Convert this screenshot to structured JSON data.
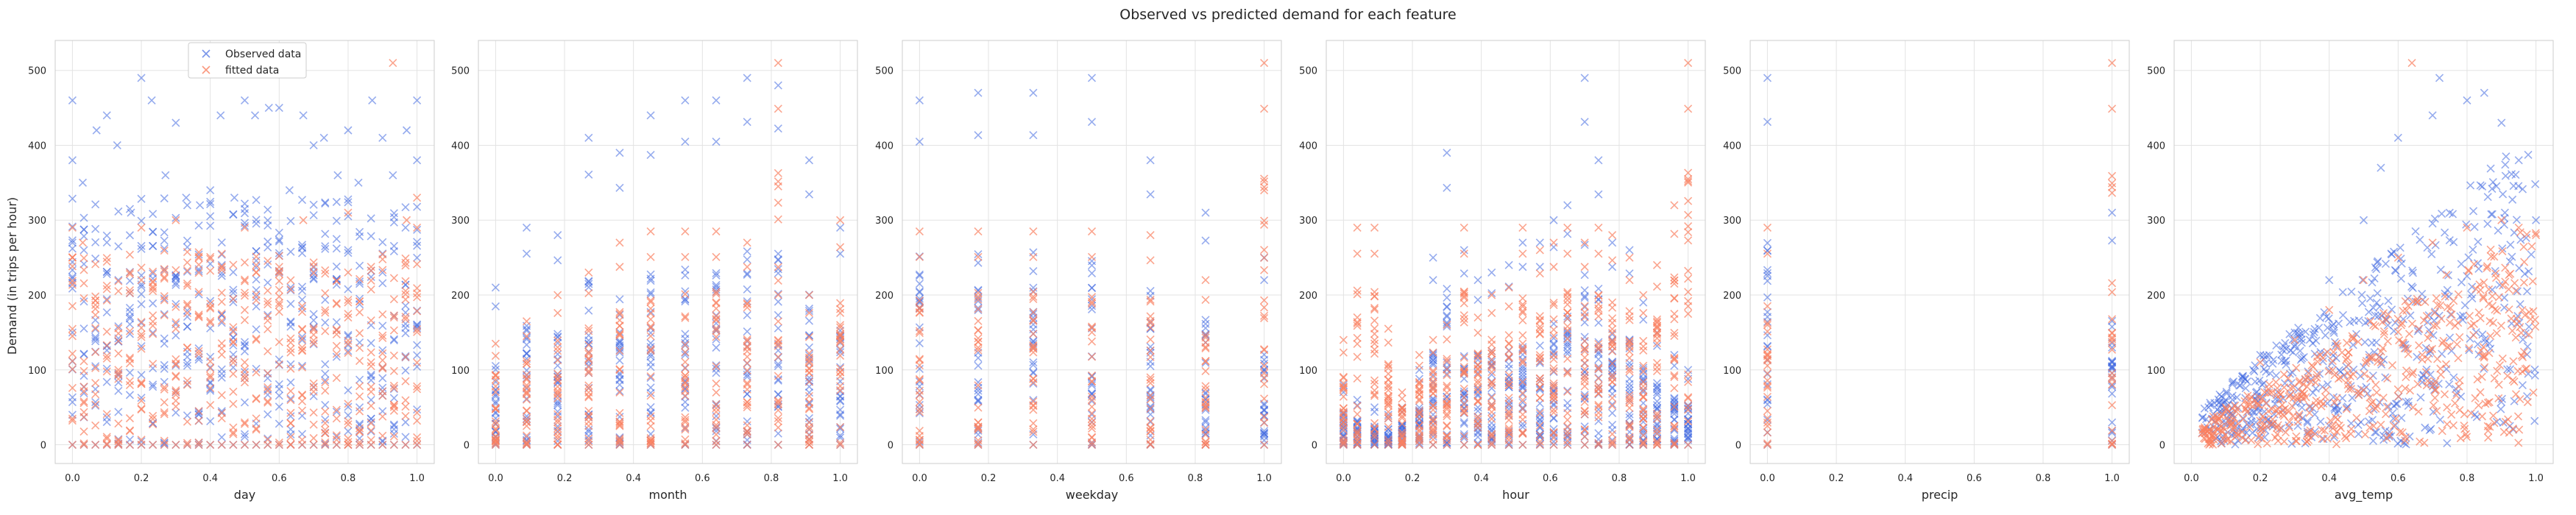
{
  "figure_title": "Observed vs predicted demand for each feature",
  "ylabel": "Demand (in trips per hour)",
  "colors": {
    "observed": "#4169e1",
    "fitted": "#fa8060",
    "grid": "#e3e3e3",
    "frame": "#cccccc"
  },
  "legend": {
    "placement": "top-center of first panel",
    "observed_label": "Observed data",
    "fitted_label": "fitted data"
  },
  "chart_data": [
    {
      "type": "scatter",
      "xlabel": "day",
      "marker": "x",
      "grid": true,
      "xlim": [
        -0.05,
        1.05
      ],
      "ylim": [
        -25,
        540
      ],
      "xticks": [
        "0.0",
        "0.2",
        "0.4",
        "0.6",
        "0.8",
        "1.0"
      ],
      "yticks": [
        "0",
        "100",
        "200",
        "300",
        "400",
        "500"
      ],
      "x_pattern": "31 day columns 0.0–1.0",
      "series": [
        {
          "name": "Observed data",
          "role": "observed",
          "points_approx": [
            [
              0.0,
              460
            ],
            [
              0.0,
              380
            ],
            [
              0.0,
              270
            ],
            [
              0.0,
              150
            ],
            [
              0.0,
              40
            ],
            [
              0.03,
              350
            ],
            [
              0.07,
              420
            ],
            [
              0.1,
              440
            ],
            [
              0.13,
              400
            ],
            [
              0.17,
              310
            ],
            [
              0.2,
              490
            ],
            [
              0.23,
              460
            ],
            [
              0.27,
              360
            ],
            [
              0.3,
              430
            ],
            [
              0.33,
              330
            ],
            [
              0.37,
              320
            ],
            [
              0.4,
              340
            ],
            [
              0.43,
              440
            ],
            [
              0.47,
              330
            ],
            [
              0.5,
              460
            ],
            [
              0.53,
              440
            ],
            [
              0.57,
              450
            ],
            [
              0.6,
              450
            ],
            [
              0.63,
              340
            ],
            [
              0.67,
              440
            ],
            [
              0.7,
              400
            ],
            [
              0.73,
              410
            ],
            [
              0.77,
              360
            ],
            [
              0.8,
              420
            ],
            [
              0.83,
              350
            ],
            [
              0.87,
              460
            ],
            [
              0.9,
              410
            ],
            [
              0.93,
              360
            ],
            [
              0.97,
              420
            ],
            [
              1.0,
              460
            ],
            [
              1.0,
              380
            ]
          ]
        },
        {
          "name": "fitted data",
          "role": "fitted",
          "points_approx": [
            [
              0.0,
              290
            ],
            [
              0.0,
              250
            ],
            [
              0.03,
              270
            ],
            [
              0.2,
              290
            ],
            [
              0.3,
              300
            ],
            [
              0.5,
              290
            ],
            [
              0.67,
              300
            ],
            [
              0.8,
              310
            ],
            [
              0.93,
              510
            ],
            [
              0.97,
              300
            ],
            [
              1.0,
              330
            ],
            [
              1.0,
              290
            ]
          ]
        }
      ]
    },
    {
      "type": "scatter",
      "xlabel": "month",
      "marker": "x",
      "grid": true,
      "xlim": [
        -0.05,
        1.05
      ],
      "ylim": [
        -25,
        540
      ],
      "xticks": [
        "0.0",
        "0.2",
        "0.4",
        "0.6",
        "0.8",
        "1.0"
      ],
      "yticks": [
        "0",
        "100",
        "200",
        "300",
        "400",
        "500"
      ],
      "x_pattern": "12 month columns 0.0–1.0",
      "series": [
        {
          "name": "Observed data",
          "role": "observed",
          "columns": [
            [
              0.0,
              210
            ],
            [
              0.09,
              290
            ],
            [
              0.18,
              280
            ],
            [
              0.27,
              410
            ],
            [
              0.36,
              390
            ],
            [
              0.45,
              440
            ],
            [
              0.55,
              460
            ],
            [
              0.64,
              460
            ],
            [
              0.73,
              490
            ],
            [
              0.82,
              480
            ],
            [
              0.91,
              380
            ],
            [
              1.0,
              290
            ]
          ]
        },
        {
          "name": "fitted data",
          "role": "fitted",
          "columns": [
            [
              0.0,
              135
            ],
            [
              0.09,
              165
            ],
            [
              0.18,
              200
            ],
            [
              0.27,
              230
            ],
            [
              0.36,
              270
            ],
            [
              0.45,
              285
            ],
            [
              0.55,
              285
            ],
            [
              0.64,
              285
            ],
            [
              0.73,
              270
            ],
            [
              0.82,
              510
            ],
            [
              0.91,
              200
            ],
            [
              1.0,
              300
            ]
          ]
        }
      ]
    },
    {
      "type": "scatter",
      "xlabel": "weekday",
      "marker": "x",
      "grid": true,
      "xlim": [
        -0.05,
        1.05
      ],
      "ylim": [
        -25,
        540
      ],
      "xticks": [
        "0.0",
        "0.2",
        "0.4",
        "0.6",
        "0.8",
        "1.0"
      ],
      "yticks": [
        "0",
        "100",
        "200",
        "300",
        "400",
        "500"
      ],
      "x_pattern": "7 weekday columns 0.0–1.0",
      "series": [
        {
          "name": "Observed data",
          "role": "observed",
          "columns": [
            [
              0.0,
              460
            ],
            [
              0.17,
              470
            ],
            [
              0.33,
              470
            ],
            [
              0.5,
              490
            ],
            [
              0.67,
              380
            ],
            [
              0.83,
              310
            ],
            [
              1.0,
              250
            ]
          ]
        },
        {
          "name": "fitted data",
          "role": "fitted",
          "columns": [
            [
              0.0,
              285
            ],
            [
              0.17,
              285
            ],
            [
              0.33,
              285
            ],
            [
              0.5,
              285
            ],
            [
              0.67,
              280
            ],
            [
              0.83,
              220
            ],
            [
              1.0,
              510
            ]
          ]
        }
      ]
    },
    {
      "type": "scatter",
      "xlabel": "hour",
      "marker": "x",
      "grid": true,
      "xlim": [
        -0.05,
        1.05
      ],
      "ylim": [
        -25,
        540
      ],
      "xticks": [
        "0.0",
        "0.2",
        "0.4",
        "0.6",
        "0.8",
        "1.0"
      ],
      "yticks": [
        "0",
        "100",
        "200",
        "300",
        "400",
        "500"
      ],
      "x_pattern": "24 hour columns 0.0–1.0",
      "series": [
        {
          "name": "Observed data",
          "role": "observed",
          "columns": [
            [
              0.0,
              80
            ],
            [
              0.04,
              60
            ],
            [
              0.09,
              50
            ],
            [
              0.13,
              40
            ],
            [
              0.17,
              50
            ],
            [
              0.22,
              100
            ],
            [
              0.26,
              250
            ],
            [
              0.3,
              390
            ],
            [
              0.35,
              260
            ],
            [
              0.39,
              220
            ],
            [
              0.43,
              230
            ],
            [
              0.48,
              240
            ],
            [
              0.52,
              270
            ],
            [
              0.57,
              270
            ],
            [
              0.61,
              300
            ],
            [
              0.65,
              320
            ],
            [
              0.7,
              490
            ],
            [
              0.74,
              380
            ],
            [
              0.78,
              270
            ],
            [
              0.83,
              260
            ],
            [
              0.87,
              190
            ],
            [
              0.91,
              150
            ],
            [
              0.96,
              120
            ],
            [
              1.0,
              100
            ]
          ]
        },
        {
          "name": "fitted data",
          "role": "fitted",
          "columns": [
            [
              0.0,
              140
            ],
            [
              0.04,
              290
            ],
            [
              0.09,
              290
            ],
            [
              0.13,
              155
            ],
            [
              0.17,
              70
            ],
            [
              0.22,
              120
            ],
            [
              0.26,
              140
            ],
            [
              0.3,
              160
            ],
            [
              0.35,
              290
            ],
            [
              0.39,
              170
            ],
            [
              0.43,
              200
            ],
            [
              0.48,
              210
            ],
            [
              0.52,
              290
            ],
            [
              0.57,
              260
            ],
            [
              0.61,
              270
            ],
            [
              0.65,
              290
            ],
            [
              0.7,
              270
            ],
            [
              0.74,
              290
            ],
            [
              0.78,
              280
            ],
            [
              0.83,
              250
            ],
            [
              0.87,
              200
            ],
            [
              0.91,
              240
            ],
            [
              0.96,
              320
            ],
            [
              1.0,
              510
            ]
          ]
        }
      ]
    },
    {
      "type": "scatter",
      "xlabel": "precip",
      "marker": "x",
      "grid": true,
      "xlim": [
        -0.05,
        1.05
      ],
      "ylim": [
        -25,
        540
      ],
      "xticks": [
        "0.0",
        "0.2",
        "0.4",
        "0.6",
        "0.8",
        "1.0"
      ],
      "yticks": [
        "0",
        "100",
        "200",
        "300",
        "400",
        "500"
      ],
      "x_pattern": "2 columns at 0.0 and 1.0",
      "series": [
        {
          "name": "Observed data",
          "role": "observed",
          "columns": [
            [
              0.0,
              490
            ],
            [
              1.0,
              310
            ]
          ]
        },
        {
          "name": "fitted data",
          "role": "fitted",
          "columns": [
            [
              0.0,
              290
            ],
            [
              1.0,
              510
            ]
          ]
        }
      ]
    },
    {
      "type": "scatter",
      "xlabel": "avg_temp",
      "marker": "x",
      "grid": true,
      "xlim": [
        -0.05,
        1.05
      ],
      "ylim": [
        -25,
        540
      ],
      "xticks": [
        "0.0",
        "0.2",
        "0.4",
        "0.6",
        "0.8",
        "1.0"
      ],
      "yticks": [
        "0",
        "100",
        "200",
        "300",
        "400",
        "500"
      ],
      "x_pattern": "continuous cloud, density increasing toward 0.7–0.9",
      "series": [
        {
          "name": "Observed data",
          "role": "observed",
          "points_approx": [
            [
              0.05,
              50
            ],
            [
              0.1,
              60
            ],
            [
              0.2,
              120
            ],
            [
              0.3,
              150
            ],
            [
              0.4,
              220
            ],
            [
              0.5,
              300
            ],
            [
              0.55,
              370
            ],
            [
              0.6,
              410
            ],
            [
              0.7,
              440
            ],
            [
              0.72,
              490
            ],
            [
              0.8,
              460
            ],
            [
              0.85,
              470
            ],
            [
              0.9,
              430
            ],
            [
              0.95,
              380
            ],
            [
              1.0,
              300
            ]
          ]
        },
        {
          "name": "fitted data",
          "role": "fitted",
          "points_approx": [
            [
              0.05,
              20
            ],
            [
              0.1,
              50
            ],
            [
              0.2,
              110
            ],
            [
              0.3,
              140
            ],
            [
              0.4,
              180
            ],
            [
              0.5,
              220
            ],
            [
              0.6,
              250
            ],
            [
              0.64,
              510
            ],
            [
              0.7,
              270
            ],
            [
              0.8,
              290
            ],
            [
              0.9,
              300
            ],
            [
              0.95,
              290
            ],
            [
              1.0,
              280
            ]
          ]
        }
      ]
    }
  ]
}
